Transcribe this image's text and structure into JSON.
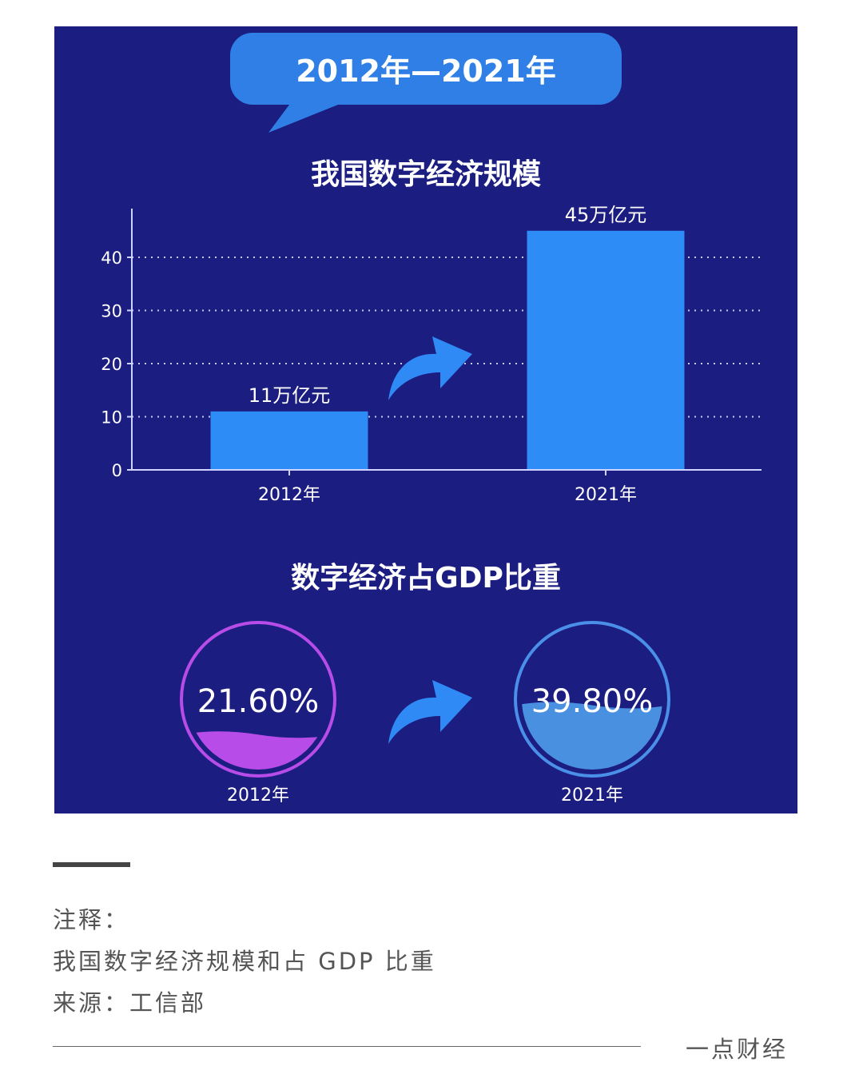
{
  "colors": {
    "background": "#1b1d80",
    "bar": "#2e8cf6",
    "bubble": "#2f7fe6",
    "purple": "#b84ce8",
    "blue_ring": "#4a8fe8",
    "blue_fill": "#4a90e0",
    "arrow": "#2f8af5"
  },
  "header": {
    "bubble_text": "2012年—2021年"
  },
  "chart_data": [
    {
      "type": "bar",
      "title": "我国数字经济规模",
      "categories": [
        "2012年",
        "2021年"
      ],
      "values": [
        11,
        45
      ],
      "data_labels": [
        "11万亿元",
        "45万亿元"
      ],
      "yticks": [
        0,
        10,
        20,
        30,
        40
      ],
      "ylim": [
        0,
        49
      ],
      "grid": "dotted horizontal",
      "xlabel": "",
      "ylabel": ""
    },
    {
      "type": "gauge",
      "title": "数字经济占GDP比重",
      "items": [
        {
          "label": "21.60%",
          "value": 21.6,
          "year": "2012年",
          "color": "#b84ce8"
        },
        {
          "label": "39.80%",
          "value": 39.8,
          "year": "2021年",
          "color": "#4a90e0"
        }
      ]
    }
  ],
  "footer": {
    "note_heading": "注释：",
    "note_text": "我国数字经济规模和占 GDP 比重",
    "source": "来源：工信部",
    "brand": "一点财经"
  }
}
